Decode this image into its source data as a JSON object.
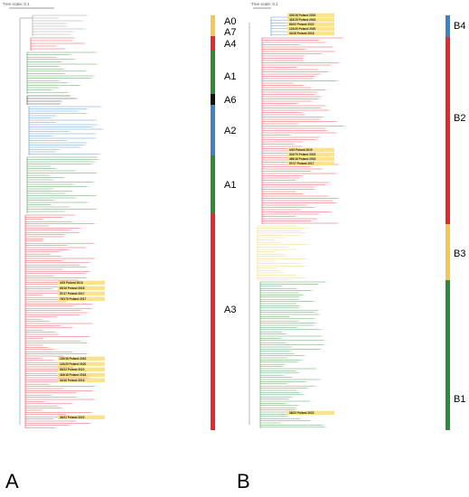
{
  "panels": [
    {
      "letter": "A",
      "tree_scale": "Tree scale: 0.1",
      "clades": [
        {
          "label": "A0",
          "color": "#f2c94c"
        },
        {
          "label": "A7",
          "color": "#f2c94c"
        },
        {
          "label": "A4",
          "color": "#e8262c"
        },
        {
          "label": "A1",
          "color": "#2f8a36"
        },
        {
          "label": "A6",
          "color": "#111111"
        },
        {
          "label": "A2",
          "color": "#3b83c4"
        },
        {
          "label": "A1",
          "color": "#2f8a36"
        },
        {
          "label": "A3",
          "color": "#e8262c"
        }
      ],
      "highlighted_taxa": [
        "4/19 Poland 2019",
        "60/16 Poland 2016",
        "57/17 Poland 2017",
        "76/170 Poland 2017",
        "120/16 Poland 2016",
        "124/20 Poland 2020",
        "89/22 Poland 2022",
        "418/18 Poland 2018",
        "34/16 Poland 2016",
        "38/22 Poland 2022"
      ]
    },
    {
      "letter": "B",
      "tree_scale": "Tree scale: 0.1",
      "clades": [
        {
          "label": "B4",
          "color": "#3b83c4"
        },
        {
          "label": "B2",
          "color": "#e8262c"
        },
        {
          "label": "B3",
          "color": "#f2c94c"
        },
        {
          "label": "B1",
          "color": "#2f8a36"
        }
      ],
      "highlighted_taxa": [
        "320/16 Poland 2016",
        "416/15 Poland 2015",
        "80/22 Poland 2022",
        "124/20 Poland 2020",
        "34/18 Poland 2018",
        "3/15 Poland 2015",
        "301/70 Poland 2015",
        "466/18 Poland 2018",
        "57/17 Poland 2017",
        "38/22 Poland 2022"
      ]
    }
  ],
  "colors": {
    "red": "#e8262c",
    "green": "#2f8a36",
    "blue": "#3b83c4",
    "yellow": "#f2c94c",
    "black": "#111111",
    "grey": "#888888",
    "highlight": "#fbe38a"
  }
}
